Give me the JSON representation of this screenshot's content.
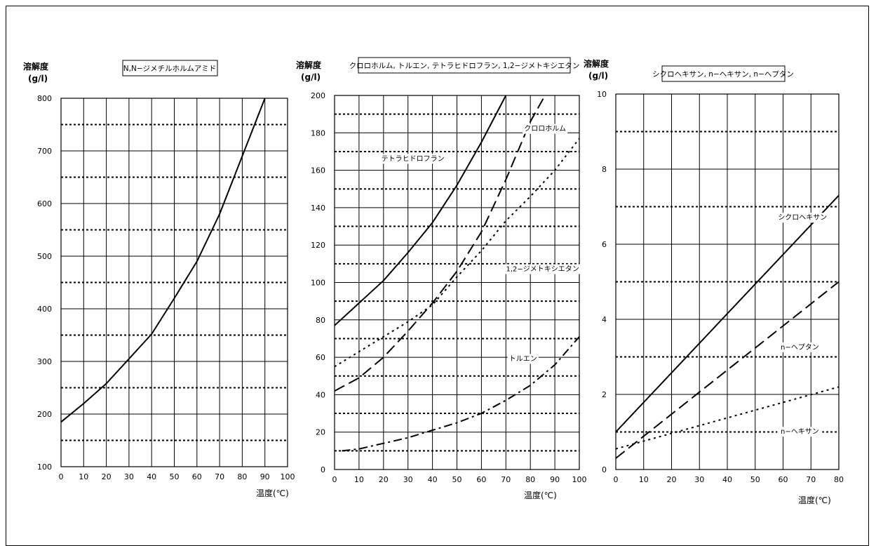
{
  "chart_data": [
    {
      "type": "line",
      "title": "N,N−ジメチルホルムアミド",
      "ylabel_line1": "溶解度",
      "ylabel_line2": "(g/l)",
      "xlabel": "温度(℃)",
      "xlim": [
        0,
        100
      ],
      "ylim": [
        100,
        800
      ],
      "xticks": [
        0,
        10,
        20,
        30,
        40,
        50,
        60,
        70,
        80,
        90,
        100
      ],
      "yticks": [
        100,
        200,
        300,
        400,
        500,
        600,
        700,
        800
      ],
      "grid": true,
      "series": [
        {
          "name": "",
          "style": "solid",
          "x": [
            0,
            10,
            20,
            30,
            40,
            50,
            60,
            70,
            80,
            90
          ],
          "y": [
            185,
            220,
            258,
            305,
            352,
            420,
            490,
            580,
            690,
            800
          ]
        }
      ],
      "annotations": []
    },
    {
      "type": "line",
      "title": "クロロホルム, トルエン, テトラヒドロフラン, 1,2−ジメトキシエタン",
      "ylabel_line1": "溶解度",
      "ylabel_line2": "(g/l)",
      "xlabel": "温度(℃)",
      "xlim": [
        0,
        100
      ],
      "ylim": [
        0,
        200
      ],
      "xticks": [
        0,
        10,
        20,
        30,
        40,
        50,
        60,
        70,
        80,
        90,
        100
      ],
      "yticks": [
        0,
        20,
        40,
        60,
        80,
        100,
        120,
        140,
        160,
        180,
        200
      ],
      "grid": true,
      "series": [
        {
          "name": "テトラヒドロフラン",
          "style": "solid",
          "x": [
            0,
            10,
            20,
            30,
            40,
            50,
            60,
            70
          ],
          "y": [
            77,
            89,
            101,
            116,
            132,
            152,
            175,
            200
          ]
        },
        {
          "name": "クロロホルム",
          "style": "dashed",
          "x": [
            0,
            10,
            20,
            30,
            40,
            50,
            60,
            70,
            80,
            86
          ],
          "y": [
            42,
            49,
            60,
            74,
            89,
            106,
            127,
            155,
            186,
            200
          ]
        },
        {
          "name": "1,2−ジメトキシエタン",
          "style": "dotted",
          "x": [
            0,
            10,
            20,
            30,
            40,
            50,
            60,
            70,
            80,
            90,
            100
          ],
          "y": [
            55,
            63,
            71,
            79,
            88,
            103,
            117,
            133,
            146,
            160,
            177
          ]
        },
        {
          "name": "トルエン",
          "style": "dashdot",
          "x": [
            3,
            10,
            20,
            30,
            40,
            50,
            60,
            70,
            80,
            90,
            100
          ],
          "y": [
            10,
            11,
            14,
            17,
            21,
            25,
            30,
            37,
            45,
            56,
            71
          ]
        }
      ],
      "annotations": [
        {
          "text": "テトラヒドロフラン",
          "x": 32,
          "y": 165
        },
        {
          "text": "クロロホルム",
          "x": 86,
          "y": 181
        },
        {
          "text": "1,2−ジメトキシエタン",
          "x": 85,
          "y": 106
        },
        {
          "text": "トルエン",
          "x": 77,
          "y": 58
        }
      ]
    },
    {
      "type": "line",
      "title": "シクロヘキサン, n−ヘキサン, n−ヘプタン",
      "ylabel_line1": "溶解度",
      "ylabel_line2": "(g/l)",
      "xlabel": "温度(℃)",
      "xlim": [
        0,
        80
      ],
      "ylim": [
        0,
        10
      ],
      "xticks": [
        0,
        10,
        20,
        30,
        40,
        50,
        60,
        70,
        80
      ],
      "yticks": [
        0,
        2,
        4,
        6,
        8,
        10
      ],
      "grid": true,
      "series": [
        {
          "name": "シクロヘキサン",
          "style": "solid",
          "x": [
            0,
            80
          ],
          "y": [
            1.0,
            7.3
          ]
        },
        {
          "name": "n−ヘプタン",
          "style": "dashed",
          "x": [
            0,
            80
          ],
          "y": [
            0.3,
            5.0
          ]
        },
        {
          "name": "n−ヘキサン",
          "style": "dotted",
          "x": [
            0,
            80
          ],
          "y": [
            0.55,
            2.2
          ]
        }
      ],
      "annotations": [
        {
          "text": "シクロヘキサン",
          "x": 67,
          "y": 6.65
        },
        {
          "text": "n−ヘプタン",
          "x": 66,
          "y": 3.2
        },
        {
          "text": "n−ヘキサン",
          "x": 66,
          "y": 0.95
        }
      ]
    }
  ]
}
